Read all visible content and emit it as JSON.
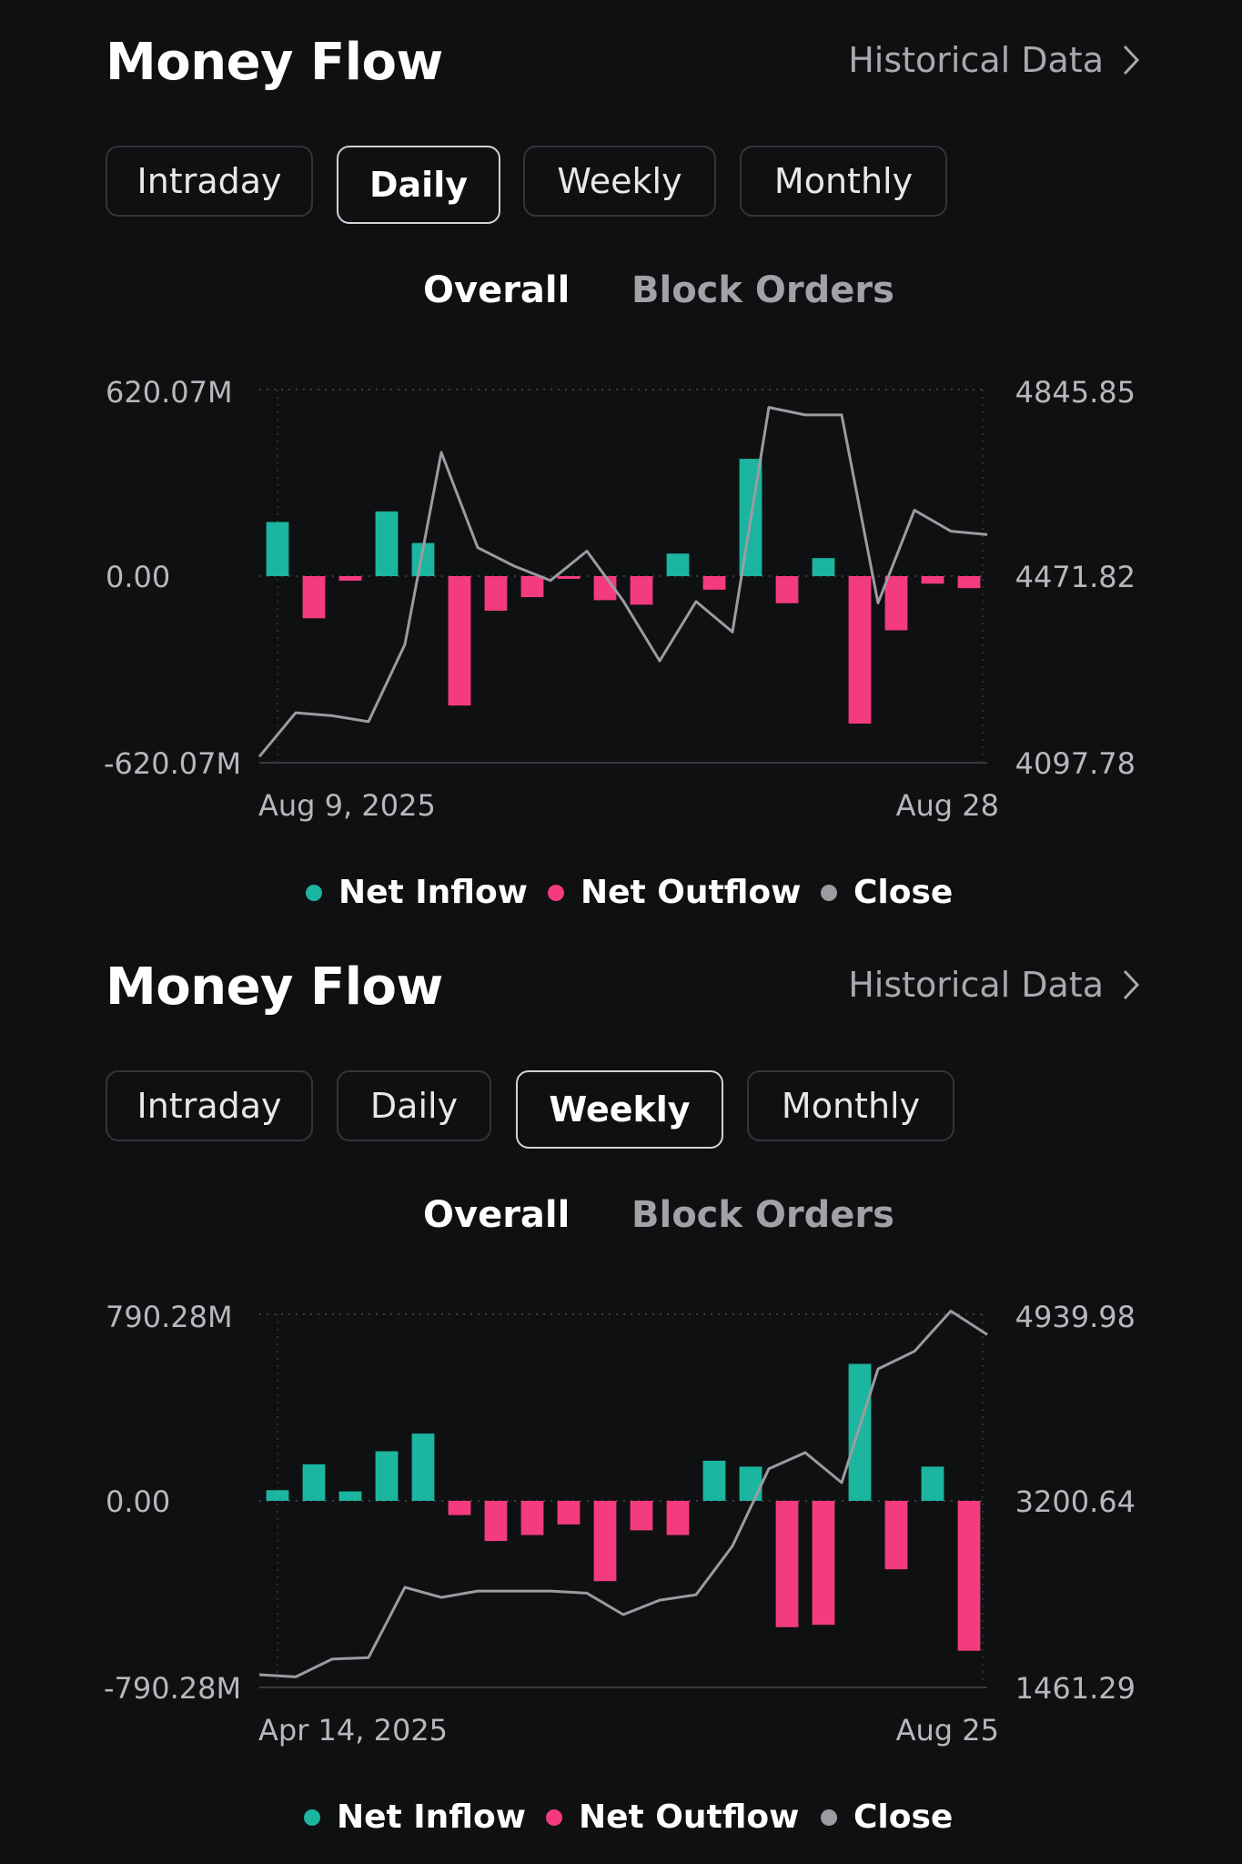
{
  "panels": [
    {
      "title": "Money Flow",
      "historical": "Historical Data",
      "tabs": [
        "Intraday",
        "Daily",
        "Weekly",
        "Monthly"
      ],
      "active_tab": "Daily",
      "subtabs": [
        "Overall",
        "Block Orders"
      ],
      "active_subtab": "Overall",
      "legend": {
        "inflow": "Net Inflow",
        "outflow": "Net Outflow",
        "close": "Close"
      }
    },
    {
      "title": "Money Flow",
      "historical": "Historical Data",
      "tabs": [
        "Intraday",
        "Daily",
        "Weekly",
        "Monthly"
      ],
      "active_tab": "Weekly",
      "subtabs": [
        "Overall",
        "Block Orders"
      ],
      "active_subtab": "Overall",
      "legend": {
        "inflow": "Net Inflow",
        "outflow": "Net Outflow",
        "close": "Close"
      }
    }
  ],
  "colors": {
    "inflow": "#1bb5a0",
    "outflow": "#f33b7d",
    "close": "#9c9ca0",
    "background": "#0f1012"
  },
  "chart_data": [
    {
      "type": "bar",
      "y_left_labels": {
        "top": "620.07M",
        "mid": "0.00",
        "bottom": "-620.07M"
      },
      "y_right_labels": {
        "top": "4845.85",
        "mid": "4471.82",
        "bottom": "4097.78"
      },
      "x_labels": {
        "start": "Aug 9, 2025",
        "end": "Aug 28"
      },
      "ylim_left": [
        -620.07,
        620.07
      ],
      "ylim_right": [
        4097.78,
        4845.85
      ],
      "bars": [
        180,
        -140,
        -15,
        215,
        110,
        -430,
        -115,
        -70,
        -4,
        -80,
        -95,
        75,
        -45,
        390,
        -90,
        60,
        -490,
        -180,
        -25,
        -40
      ],
      "close": [
        4110,
        4198,
        4192,
        4180,
        4335,
        4720,
        4529,
        4492,
        4463,
        4522,
        4422,
        4302,
        4421,
        4360,
        4810,
        4795,
        4795,
        4418,
        4604,
        4562,
        4555
      ]
    },
    {
      "type": "bar",
      "y_left_labels": {
        "top": "790.28M",
        "mid": "0.00",
        "bottom": "-790.28M"
      },
      "y_right_labels": {
        "top": "4939.98",
        "mid": "3200.64",
        "bottom": "1461.29"
      },
      "x_labels": {
        "start": "Apr 14, 2025",
        "end": "Aug 25"
      },
      "ylim_left": [
        -790.28,
        790.28
      ],
      "ylim_right": [
        1461.29,
        4939.98
      ],
      "bars": [
        45,
        155,
        40,
        210,
        285,
        -60,
        -170,
        -145,
        -100,
        -340,
        -125,
        -145,
        170,
        145,
        -535,
        -525,
        580,
        -290,
        145,
        -635
      ],
      "close": [
        1580,
        1560,
        1725,
        1740,
        2395,
        2300,
        2360,
        2360,
        2360,
        2340,
        2140,
        2275,
        2325,
        2780,
        3500,
        3650,
        3370,
        4430,
        4595,
        4970,
        4750
      ]
    }
  ]
}
